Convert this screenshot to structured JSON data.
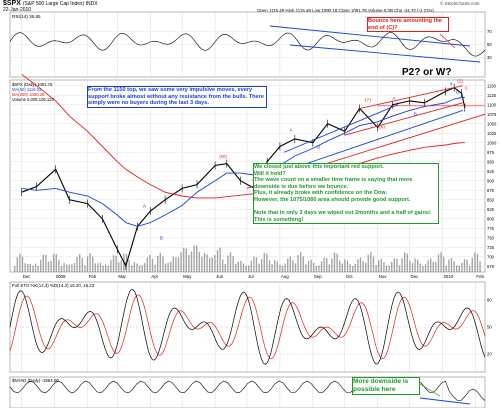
{
  "header": {
    "symbol": "$SPX",
    "name": "(S&P 500 Large Cap Index) INDX",
    "date": "22-Jan-2010",
    "ohlc": "Open 1115.49  High 1115.49  Low 1090.18  Close 1091.76  Volume 5.0B  Chg -24.72 (-2.21%)",
    "stockcharts": "© StockCharts.com"
  },
  "panel_labels": {
    "rsi": "RSI(14) 36.65",
    "price_legend": [
      "$SPX (Daily) 1091.76",
      "MA(50) 1119.02",
      "MA(200) 1000.29",
      "Volume 5,005,106,120"
    ],
    "sto": "Full STO %K(14,3) %D(14,3) 16.20, 15.23",
    "bpnyad": "$NYAD (Daily) -1964.00"
  },
  "annotations": {
    "top_left": "From the 1150 top, we saw some very impulsive moves, every support broke almost without any resistance from the bulls. There simply were no buyers during the last 3 days.",
    "bounce": "Bounce here amounting the end of (C)?",
    "p2w": "P2? or W?",
    "middle": "We closed just above this important red support.\nWill it hold?\nThe wave count on a smaller time frame is saying that more downside is due before we bounce.\nPlus, it already broke with confidence on the Dow.\nHowever, the 1075/1080 area should provide good support.\n\nNote that in only 3 days we wiped out 2months and a half of gains! This is something!",
    "bottom": "More downside is possible here"
  },
  "wave_labels": {
    "red": [
      "(W)",
      "(X)",
      "(Y)",
      "(X)",
      "(2)",
      "C",
      "c"
    ],
    "blue": [
      "A",
      "B",
      "A",
      "B",
      "A",
      "B",
      "a",
      "b"
    ]
  },
  "x_ticks": [
    "Dec",
    "2009",
    "Feb",
    "Mar",
    "Apr",
    "May",
    "Jun",
    "Jul",
    "Aug",
    "Sep",
    "Oct",
    "Nov",
    "Dec",
    "2010",
    "Feb"
  ],
  "y_ticks_price": [
    1150,
    1125,
    1100,
    1075,
    1050,
    1025,
    1000,
    975,
    950,
    925,
    900,
    875,
    850,
    825,
    800,
    775,
    750,
    725,
    700,
    675
  ],
  "y_ticks_rsi": [
    70,
    50,
    30
  ],
  "y_ticks_sto": [
    80,
    50,
    20
  ],
  "colors": {
    "price": "#000000",
    "ma50": "#1a3fd0",
    "ma200": "#e0201c",
    "volume": "#6a6a6a",
    "sto_k": "#000000",
    "sto_d": "#e0201c",
    "support": "#e0201c",
    "channel_blue": "#1a3fd0",
    "rsi": "#000000"
  },
  "chart_data": {
    "type": "line",
    "title": "$SPX (S&P 500 Large Cap Index) INDX",
    "x": [
      "2008-12-01",
      "2008-12-15",
      "2009-01-02",
      "2009-01-15",
      "2009-02-01",
      "2009-02-15",
      "2009-03-01",
      "2009-03-09",
      "2009-03-20",
      "2009-04-01",
      "2009-04-15",
      "2009-05-01",
      "2009-05-15",
      "2009-06-01",
      "2009-06-12",
      "2009-06-25",
      "2009-07-08",
      "2009-07-20",
      "2009-08-01",
      "2009-08-15",
      "2009-09-01",
      "2009-09-15",
      "2009-10-01",
      "2009-10-15",
      "2009-11-01",
      "2009-11-15",
      "2009-12-01",
      "2009-12-15",
      "2010-01-04",
      "2010-01-12",
      "2010-01-19",
      "2010-01-22"
    ],
    "series": [
      {
        "name": "$SPX (Daily) 1091.76",
        "values": [
          870,
          885,
          930,
          850,
          840,
          800,
          720,
          676,
          780,
          820,
          850,
          880,
          890,
          940,
          945,
          900,
          880,
          950,
          990,
          1010,
          1000,
          1050,
          1030,
          1090,
          1040,
          1100,
          1110,
          1105,
          1135,
          1145,
          1130,
          1092
        ]
      },
      {
        "name": "MA(50) 1119.02",
        "values": [
          880,
          875,
          880,
          870,
          860,
          840,
          810,
          790,
          780,
          790,
          810,
          835,
          870,
          900,
          920,
          920,
          915,
          920,
          940,
          965,
          985,
          1005,
          1025,
          1045,
          1055,
          1070,
          1085,
          1095,
          1105,
          1115,
          1119,
          1119
        ]
      },
      {
        "name": "MA(200) 1000.29",
        "values": [
          1180,
          1150,
          1110,
          1070,
          1030,
          990,
          950,
          930,
          910,
          890,
          870,
          860,
          855,
          855,
          858,
          862,
          866,
          875,
          885,
          895,
          905,
          915,
          930,
          945,
          960,
          970,
          980,
          988,
          994,
          998,
          1000,
          1000
        ]
      }
    ],
    "ylim": [
      660,
      1165
    ],
    "xlabel": "",
    "ylabel": "",
    "grid": true,
    "legend": "top-left"
  }
}
